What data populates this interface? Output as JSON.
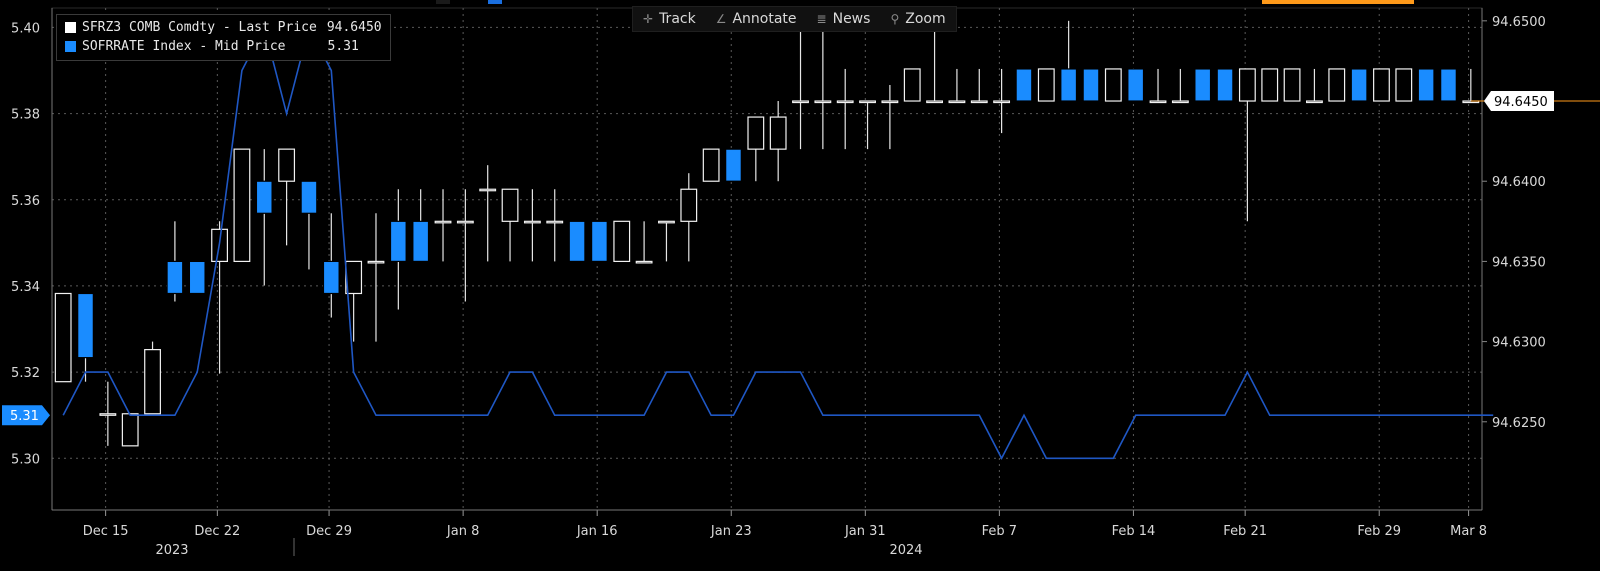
{
  "toolbar": {
    "track": "Track",
    "annotate": "Annotate",
    "news": "News",
    "zoom": "Zoom"
  },
  "colors": {
    "white_candle": "#ffffff",
    "blue_candle": "#1a8cff",
    "line": "#1f57c4",
    "accent": "#ff9a1a"
  },
  "chart_data": {
    "type": "candlestick+line",
    "legend": [
      {
        "label": "SFRZ3 COMB Comdty - Last Price",
        "value": "94.6450",
        "color": "#ffffff"
      },
      {
        "label": "SOFRRATE Index - Mid Price",
        "value": "5.31",
        "color": "#1a8cff"
      }
    ],
    "left_axis": {
      "ticks": [
        "5.40",
        "5.38",
        "5.36",
        "5.34",
        "5.32",
        "5.30"
      ],
      "range": [
        5.288,
        5.4045
      ],
      "current_label": "5.31"
    },
    "right_axis": {
      "ticks": [
        "94.6500",
        "94.6400",
        "94.6350",
        "94.6300",
        "94.6250"
      ],
      "range": [
        94.6195,
        94.6508
      ],
      "current_label": "94.6450"
    },
    "x_axis": {
      "ticks": [
        "Dec 15",
        "Dec 22",
        "Dec 29",
        "Jan 8",
        "Jan 16",
        "Jan 23",
        "Jan 31",
        "Feb 7",
        "Feb 14",
        "Feb 21",
        "Feb 29",
        "Mar 8"
      ],
      "years": [
        "2023",
        "2024"
      ]
    },
    "candles": [
      [
        94.633,
        94.633,
        94.6275,
        94.6275,
        "W"
      ],
      [
        94.633,
        94.633,
        94.6275,
        94.629,
        "B"
      ],
      [
        94.6255,
        94.6275,
        94.6235,
        94.6255,
        "W"
      ],
      [
        94.6235,
        94.6255,
        94.6235,
        94.6255,
        "W"
      ],
      [
        94.6255,
        94.63,
        94.6255,
        94.6295,
        "W"
      ],
      [
        94.635,
        94.6375,
        94.6325,
        94.633,
        "B"
      ],
      [
        94.635,
        94.635,
        94.633,
        94.633,
        "B"
      ],
      [
        94.635,
        94.6375,
        94.628,
        94.637,
        "W"
      ],
      [
        94.635,
        94.642,
        94.635,
        94.642,
        "W"
      ],
      [
        94.64,
        94.642,
        94.6335,
        94.638,
        "B"
      ],
      [
        94.64,
        94.642,
        94.636,
        94.642,
        "W"
      ],
      [
        94.64,
        94.64,
        94.6345,
        94.638,
        "B"
      ],
      [
        94.635,
        94.638,
        94.6315,
        94.633,
        "B"
      ],
      [
        94.633,
        94.635,
        94.63,
        94.635,
        "W"
      ],
      [
        94.635,
        94.638,
        94.63,
        94.635,
        "W"
      ],
      [
        94.635,
        94.6395,
        94.632,
        94.6375,
        "B"
      ],
      [
        94.6375,
        94.6395,
        94.635,
        94.635,
        "B"
      ],
      [
        94.6375,
        94.6395,
        94.635,
        94.6375,
        "W"
      ],
      [
        94.6375,
        94.6395,
        94.6325,
        94.6375,
        "W"
      ],
      [
        94.6395,
        94.641,
        94.635,
        94.6395,
        "W"
      ],
      [
        94.6395,
        94.6395,
        94.635,
        94.6375,
        "W"
      ],
      [
        94.6375,
        94.6395,
        94.635,
        94.6375,
        "W"
      ],
      [
        94.6375,
        94.6395,
        94.635,
        94.6375,
        "W"
      ],
      [
        94.6375,
        94.6375,
        94.635,
        94.635,
        "B"
      ],
      [
        94.6375,
        94.6375,
        94.635,
        94.635,
        "B"
      ],
      [
        94.6375,
        94.6375,
        94.635,
        94.635,
        "W"
      ],
      [
        94.635,
        94.6375,
        94.635,
        94.635,
        "W"
      ],
      [
        94.6375,
        94.6375,
        94.635,
        94.6375,
        "W"
      ],
      [
        94.6375,
        94.6405,
        94.635,
        94.6395,
        "W"
      ],
      [
        94.642,
        94.642,
        94.64,
        94.64,
        "W"
      ],
      [
        94.64,
        94.642,
        94.64,
        94.642,
        "B"
      ],
      [
        94.642,
        94.644,
        94.64,
        94.644,
        "W"
      ],
      [
        94.642,
        94.645,
        94.64,
        94.644,
        "W"
      ],
      [
        94.645,
        94.65,
        94.642,
        94.645,
        "W"
      ],
      [
        94.645,
        94.65,
        94.642,
        94.645,
        "W"
      ],
      [
        94.645,
        94.647,
        94.642,
        94.645,
        "W"
      ],
      [
        94.645,
        94.645,
        94.642,
        94.645,
        "W"
      ],
      [
        94.645,
        94.646,
        94.642,
        94.645,
        "W"
      ],
      [
        94.645,
        94.647,
        94.645,
        94.647,
        "W"
      ],
      [
        94.645,
        94.65,
        94.645,
        94.645,
        "W"
      ],
      [
        94.645,
        94.647,
        94.645,
        94.645,
        "W"
      ],
      [
        94.645,
        94.647,
        94.645,
        94.645,
        "W"
      ],
      [
        94.645,
        94.647,
        94.643,
        94.645,
        "W"
      ],
      [
        94.645,
        94.647,
        94.645,
        94.647,
        "B"
      ],
      [
        94.645,
        94.647,
        94.645,
        94.647,
        "W"
      ],
      [
        94.645,
        94.65,
        94.645,
        94.647,
        "B"
      ],
      [
        94.645,
        94.647,
        94.645,
        94.647,
        "B"
      ],
      [
        94.645,
        94.647,
        94.645,
        94.647,
        "W"
      ],
      [
        94.645,
        94.647,
        94.645,
        94.647,
        "B"
      ],
      [
        94.645,
        94.647,
        94.645,
        94.645,
        "W"
      ],
      [
        94.645,
        94.647,
        94.645,
        94.645,
        "W"
      ],
      [
        94.645,
        94.647,
        94.645,
        94.647,
        "B"
      ],
      [
        94.645,
        94.647,
        94.645,
        94.647,
        "B"
      ],
      [
        94.645,
        94.647,
        94.6375,
        94.647,
        "W"
      ],
      [
        94.645,
        94.647,
        94.645,
        94.647,
        "W"
      ],
      [
        94.645,
        94.647,
        94.645,
        94.647,
        "W"
      ],
      [
        94.645,
        94.647,
        94.645,
        94.645,
        "W"
      ],
      [
        94.645,
        94.647,
        94.645,
        94.647,
        "W"
      ],
      [
        94.645,
        94.647,
        94.645,
        94.647,
        "B"
      ],
      [
        94.645,
        94.647,
        94.645,
        94.647,
        "W"
      ],
      [
        94.645,
        94.647,
        94.645,
        94.647,
        "W"
      ],
      [
        94.645,
        94.647,
        94.645,
        94.647,
        "B"
      ],
      [
        94.645,
        94.647,
        94.645,
        94.647,
        "B"
      ],
      [
        94.645,
        94.647,
        94.645,
        94.645,
        "W"
      ]
    ],
    "sofr_line": [
      5.31,
      5.32,
      5.32,
      5.31,
      5.31,
      5.31,
      5.32,
      5.35,
      5.39,
      5.4,
      5.38,
      5.4,
      5.39,
      5.32,
      5.31,
      5.31,
      5.31,
      5.31,
      5.31,
      5.31,
      5.32,
      5.32,
      5.31,
      5.31,
      5.31,
      5.31,
      5.31,
      5.32,
      5.32,
      5.31,
      5.31,
      5.32,
      5.32,
      5.32,
      5.31,
      5.31,
      5.31,
      5.31,
      5.31,
      5.31,
      5.31,
      5.31,
      5.3,
      5.31,
      5.3,
      5.3,
      5.3,
      5.3,
      5.31,
      5.31,
      5.31,
      5.31,
      5.31,
      5.32,
      5.31,
      5.31,
      5.31,
      5.31,
      5.31,
      5.31,
      5.31,
      5.31,
      5.31,
      5.31,
      5.31
    ]
  }
}
